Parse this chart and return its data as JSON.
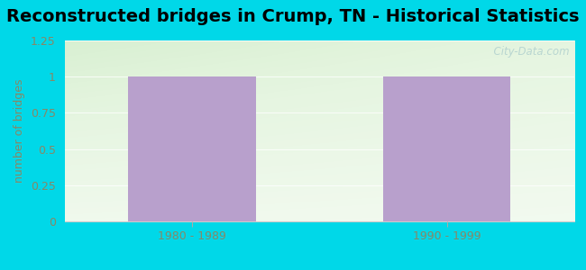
{
  "title": "Reconstructed bridges in Crump, TN - Historical Statistics",
  "categories": [
    "1980 - 1989",
    "1990 - 1999"
  ],
  "values": [
    1,
    1
  ],
  "bar_color": "#b8a0cc",
  "background_outer": "#00d8e8",
  "ylabel": "number of bridges",
  "ylim": [
    0,
    1.25
  ],
  "yticks": [
    0,
    0.25,
    0.5,
    0.75,
    1.0,
    1.25
  ],
  "ytick_labels": [
    "0",
    "0.25",
    "0.5",
    "0.75",
    "1",
    "1.25"
  ],
  "title_fontsize": 14,
  "ylabel_fontsize": 9,
  "tick_fontsize": 9,
  "tick_color": "#888866",
  "ylabel_color": "#888866",
  "watermark": "  City-Data.com",
  "watermark_color": "#aacccc"
}
